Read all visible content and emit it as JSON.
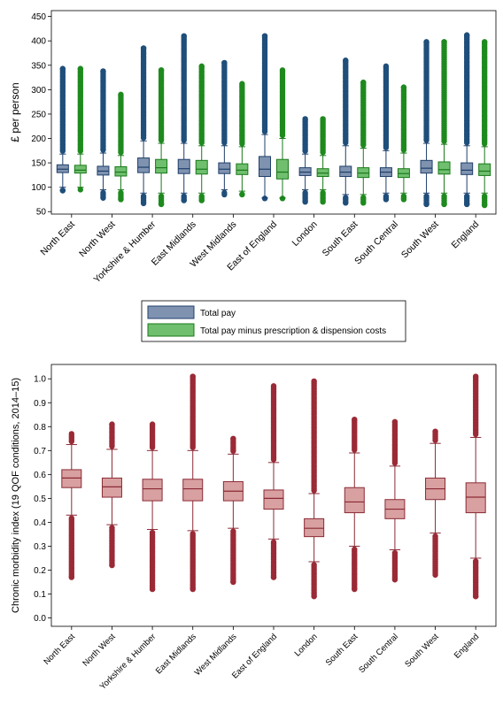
{
  "colors": {
    "pay_fill": "#7f93b0",
    "pay_stroke": "#1f3f6b",
    "pay_outlier": "#1f4e7a",
    "minus_fill": "#6fbf6f",
    "minus_stroke": "#1a7a1a",
    "minus_outlier": "#1e8a1e",
    "morb_fill": "#d8a0a0",
    "morb_stroke": "#8b2a35",
    "morb_outlier": "#9a2a36"
  },
  "chart_data": [
    {
      "type": "box",
      "ylabel": "£ per person",
      "ylim": [
        45,
        462
      ],
      "yticks": [
        50,
        100,
        150,
        200,
        250,
        300,
        350,
        400,
        450
      ],
      "categories": [
        "North East",
        "North West",
        "Yorkshire & Humber",
        "East Midlands",
        "West Midlands",
        "East of England",
        "London",
        "South East",
        "South Central",
        "South West",
        "England"
      ],
      "legend": {
        "placement": "bottom"
      },
      "series": [
        {
          "name": "Total pay",
          "color_key": "pay",
          "boxes": [
            {
              "q1": 130,
              "median": 137,
              "q3": 146,
              "wlo": 100,
              "whi": 168,
              "omin": 93,
              "omax": 343
            },
            {
              "q1": 125,
              "median": 133,
              "q3": 143,
              "wlo": 95,
              "whi": 170,
              "omin": 78,
              "omax": 338
            },
            {
              "q1": 130,
              "median": 141,
              "q3": 160,
              "wlo": 88,
              "whi": 195,
              "omin": 67,
              "omax": 385
            },
            {
              "q1": 128,
              "median": 138,
              "q3": 157,
              "wlo": 88,
              "whi": 190,
              "omin": 73,
              "omax": 410
            },
            {
              "q1": 128,
              "median": 137,
              "q3": 150,
              "wlo": 95,
              "whi": 185,
              "omin": 85,
              "omax": 355
            },
            {
              "q1": 122,
              "median": 137,
              "q3": 163,
              "wlo": 78,
              "whi": 208,
              "omin": 77,
              "omax": 410
            },
            {
              "q1": 124,
              "median": 131,
              "q3": 140,
              "wlo": 95,
              "whi": 168,
              "omin": 70,
              "omax": 240
            },
            {
              "q1": 122,
              "median": 131,
              "q3": 143,
              "wlo": 85,
              "whi": 185,
              "omin": 68,
              "omax": 360
            },
            {
              "q1": 122,
              "median": 131,
              "q3": 140,
              "wlo": 88,
              "whi": 175,
              "omin": 75,
              "omax": 348
            },
            {
              "q1": 129,
              "median": 139,
              "q3": 155,
              "wlo": 88,
              "whi": 190,
              "omin": 65,
              "omax": 398
            },
            {
              "q1": 126,
              "median": 135,
              "q3": 150,
              "wlo": 88,
              "whi": 185,
              "omin": 65,
              "omax": 412
            }
          ]
        },
        {
          "name": "Total pay minus prescription & dispension costs",
          "color_key": "minus",
          "boxes": [
            {
              "q1": 129,
              "median": 135,
              "q3": 145,
              "wlo": 100,
              "whi": 168,
              "omin": 95,
              "omax": 343
            },
            {
              "q1": 123,
              "median": 131,
              "q3": 142,
              "wlo": 95,
              "whi": 165,
              "omin": 75,
              "omax": 290
            },
            {
              "q1": 129,
              "median": 140,
              "q3": 157,
              "wlo": 88,
              "whi": 190,
              "omin": 65,
              "omax": 340
            },
            {
              "q1": 127,
              "median": 137,
              "q3": 155,
              "wlo": 88,
              "whi": 185,
              "omin": 73,
              "omax": 348
            },
            {
              "q1": 126,
              "median": 135,
              "q3": 148,
              "wlo": 92,
              "whi": 183,
              "omin": 85,
              "omax": 312
            },
            {
              "q1": 117,
              "median": 131,
              "q3": 157,
              "wlo": 78,
              "whi": 200,
              "omin": 77,
              "omax": 340
            },
            {
              "q1": 122,
              "median": 129,
              "q3": 138,
              "wlo": 95,
              "whi": 165,
              "omin": 70,
              "omax": 240
            },
            {
              "q1": 120,
              "median": 129,
              "q3": 140,
              "wlo": 85,
              "whi": 180,
              "omin": 68,
              "omax": 315
            },
            {
              "q1": 120,
              "median": 128,
              "q3": 138,
              "wlo": 88,
              "whi": 170,
              "omin": 75,
              "omax": 305
            },
            {
              "q1": 127,
              "median": 136,
              "q3": 152,
              "wlo": 88,
              "whi": 188,
              "omin": 65,
              "omax": 398
            },
            {
              "q1": 124,
              "median": 133,
              "q3": 148,
              "wlo": 88,
              "whi": 183,
              "omin": 63,
              "omax": 398
            }
          ]
        }
      ]
    },
    {
      "type": "box",
      "ylabel": "Chronic morbidity index (19 QOF conditions, 2014–15)",
      "ylim": [
        -0.035,
        1.06
      ],
      "yticks": [
        "0.0",
        "0.1",
        "0.2",
        "0.3",
        "0.4",
        "0.5",
        "0.6",
        "0.7",
        "0.8",
        "0.9",
        "1.0"
      ],
      "categories": [
        "North East",
        "North West",
        "Yorkshire & Humber",
        "East Midlands",
        "West Midlands",
        "East of England",
        "London",
        "South East",
        "South Central",
        "South West",
        "England"
      ],
      "series": [
        {
          "color_key": "morb",
          "boxes": [
            {
              "q1": 0.545,
              "median": 0.585,
              "q3": 0.62,
              "wlo": 0.43,
              "whi": 0.725,
              "omin": 0.17,
              "omax": 0.77
            },
            {
              "q1": 0.505,
              "median": 0.548,
              "q3": 0.585,
              "wlo": 0.39,
              "whi": 0.705,
              "omin": 0.22,
              "omax": 0.81
            },
            {
              "q1": 0.49,
              "median": 0.54,
              "q3": 0.58,
              "wlo": 0.37,
              "whi": 0.7,
              "omin": 0.12,
              "omax": 0.81
            },
            {
              "q1": 0.49,
              "median": 0.54,
              "q3": 0.58,
              "wlo": 0.365,
              "whi": 0.7,
              "omin": 0.12,
              "omax": 1.01
            },
            {
              "q1": 0.49,
              "median": 0.53,
              "q3": 0.57,
              "wlo": 0.375,
              "whi": 0.685,
              "omin": 0.15,
              "omax": 0.75
            },
            {
              "q1": 0.455,
              "median": 0.5,
              "q3": 0.535,
              "wlo": 0.33,
              "whi": 0.65,
              "omin": 0.17,
              "omax": 0.97
            },
            {
              "q1": 0.34,
              "median": 0.375,
              "q3": 0.415,
              "wlo": 0.235,
              "whi": 0.52,
              "omin": 0.09,
              "omax": 0.99
            },
            {
              "q1": 0.44,
              "median": 0.485,
              "q3": 0.545,
              "wlo": 0.3,
              "whi": 0.69,
              "omin": 0.12,
              "omax": 0.83
            },
            {
              "q1": 0.415,
              "median": 0.455,
              "q3": 0.495,
              "wlo": 0.285,
              "whi": 0.635,
              "omin": 0.16,
              "omax": 0.82
            },
            {
              "q1": 0.495,
              "median": 0.54,
              "q3": 0.585,
              "wlo": 0.355,
              "whi": 0.73,
              "omin": 0.18,
              "omax": 0.78
            },
            {
              "q1": 0.44,
              "median": 0.505,
              "q3": 0.565,
              "wlo": 0.25,
              "whi": 0.755,
              "omin": 0.09,
              "omax": 1.01
            }
          ]
        }
      ]
    }
  ]
}
